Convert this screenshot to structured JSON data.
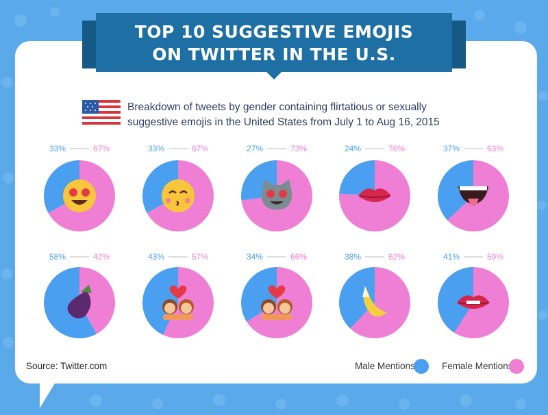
{
  "title_line1": "TOP 10 SUGGESTIVE EMOJIS",
  "title_line2": "ON TWITTER IN THE U.S.",
  "subtitle_line1": "Breakdown of tweets by gender containing flirtatious or sexually",
  "subtitle_line2": "suggestive emojis in the United States from July 1 to Aug 16, 2015",
  "source": "Source: Twitter.com",
  "colors": {
    "male": "#4a9ff0",
    "female": "#ee7fd4",
    "banner": "#1e6fa3",
    "background": "#5aa9ea"
  },
  "chart_data": {
    "type": "pie",
    "series_names": [
      "Male Mentions",
      "Female Mentions"
    ],
    "legend": {
      "placement": "bottom-right",
      "items": [
        "Male Mentions",
        "Female Mentions"
      ]
    },
    "pies": [
      {
        "emoji": "heart-eyes-face",
        "male": 33,
        "female": 67,
        "male_label": "33%",
        "female_label": "67%"
      },
      {
        "emoji": "kissing-face",
        "male": 33,
        "female": 67,
        "male_label": "33%",
        "female_label": "67%"
      },
      {
        "emoji": "heart-eyes-cat",
        "male": 27,
        "female": 73,
        "male_label": "27%",
        "female_label": "73%"
      },
      {
        "emoji": "kiss-mark-lips",
        "male": 24,
        "female": 76,
        "male_label": "24%",
        "female_label": "76%"
      },
      {
        "emoji": "tongue-mouth",
        "male": 37,
        "female": 63,
        "male_label": "37%",
        "female_label": "63%"
      },
      {
        "emoji": "eggplant",
        "male": 58,
        "female": 42,
        "male_label": "58%",
        "female_label": "42%"
      },
      {
        "emoji": "kissing-couple",
        "male": 43,
        "female": 57,
        "male_label": "43%",
        "female_label": "57%"
      },
      {
        "emoji": "couple-with-heart",
        "male": 34,
        "female": 66,
        "male_label": "34%",
        "female_label": "66%"
      },
      {
        "emoji": "banana",
        "male": 38,
        "female": 62,
        "male_label": "38%",
        "female_label": "62%"
      },
      {
        "emoji": "lips",
        "male": 41,
        "female": 59,
        "male_label": "41%",
        "female_label": "59%"
      }
    ]
  }
}
